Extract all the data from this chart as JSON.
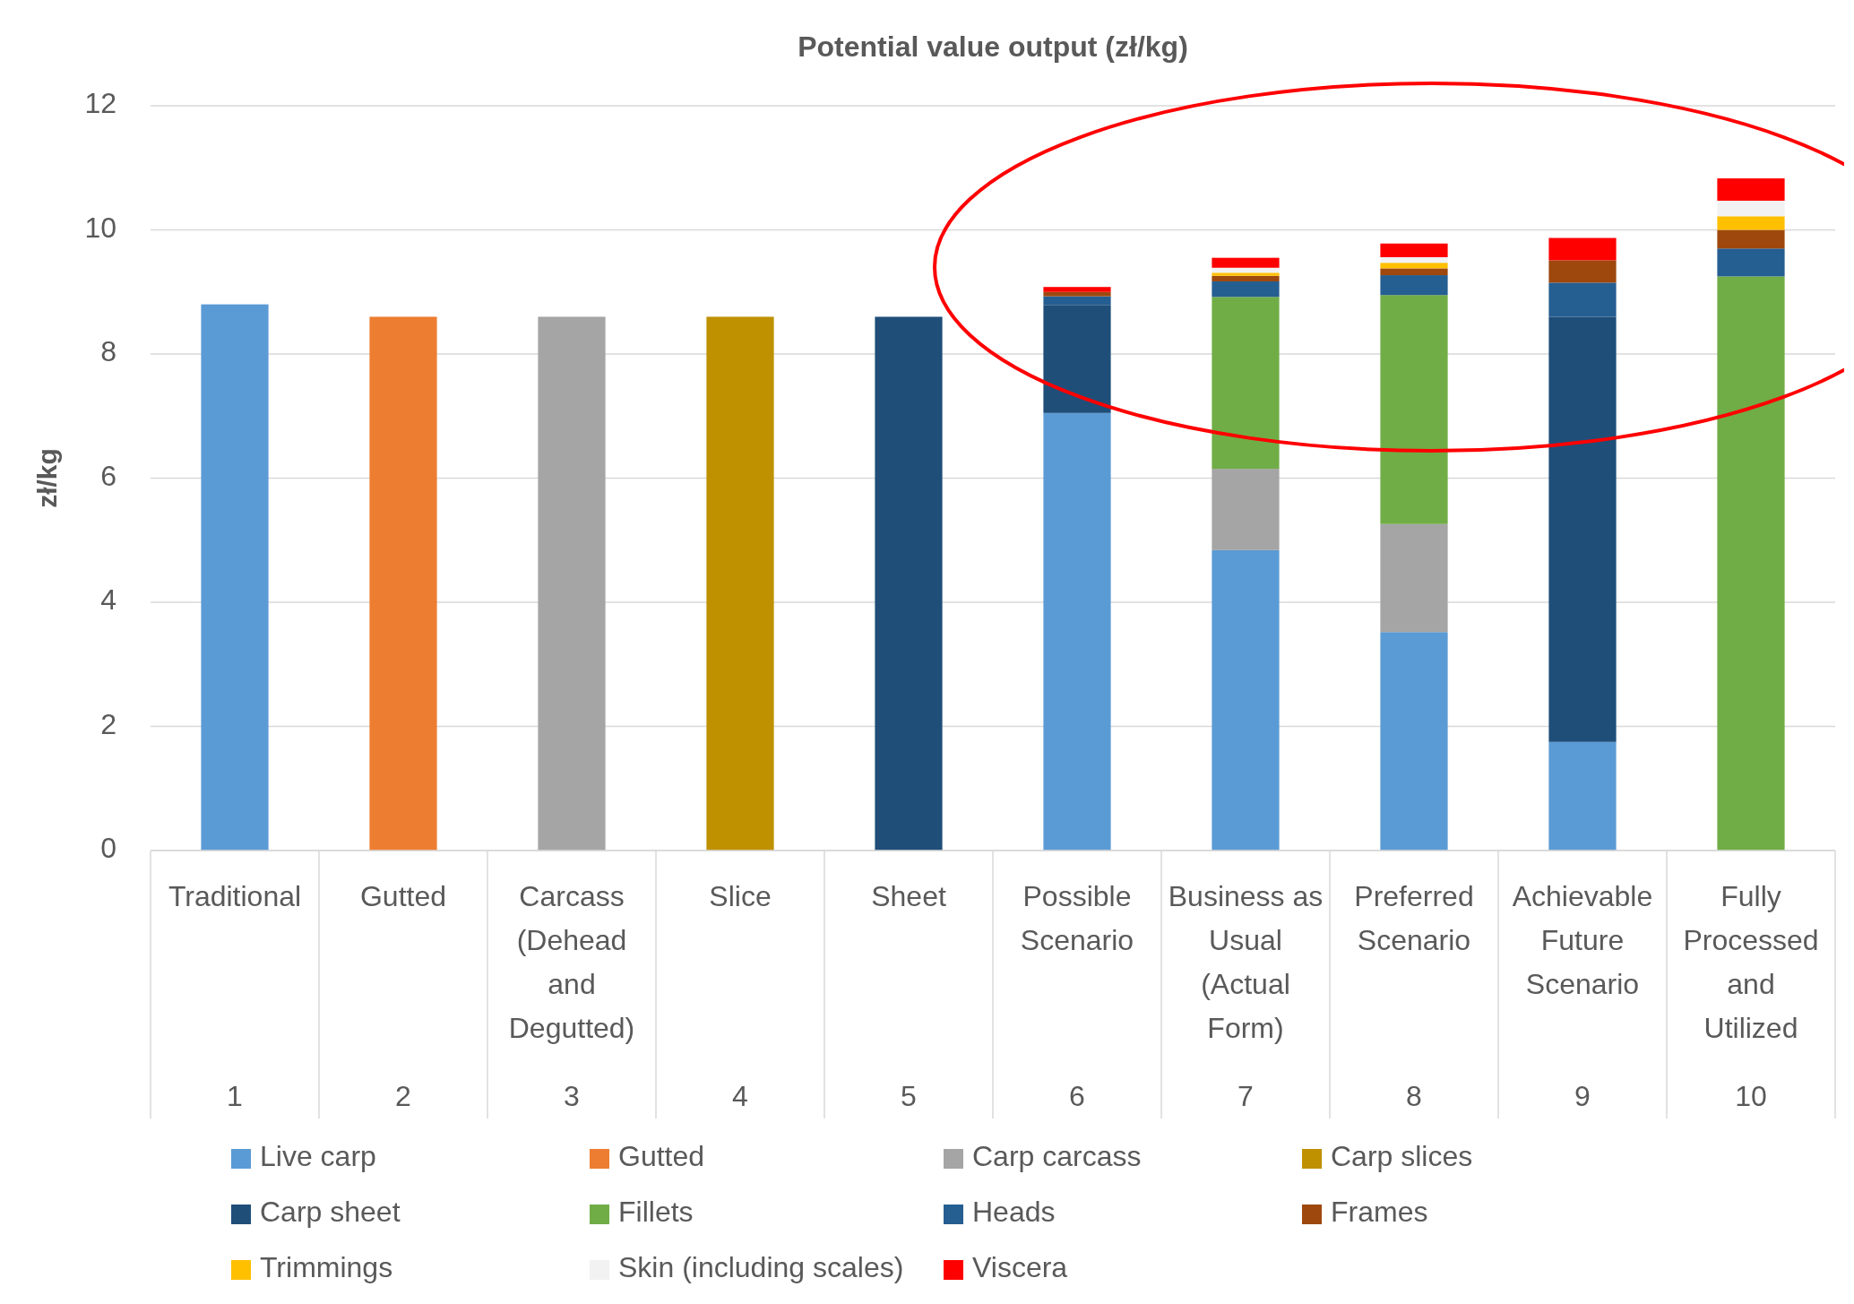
{
  "chart_data": {
    "type": "bar",
    "stacked": true,
    "title": "Potential value output (zł/kg)",
    "ylabel": "zł/kg",
    "categories": [
      "Traditional\n1",
      "Gutted\n2",
      "Carcass\n(Dehead\nand\nDegutted)\n3",
      "Slice\n4",
      "Sheet\n5",
      "Possible\nScenario\n6",
      "Business as\nUsual\n(Actual\nForm)\n7",
      "Preferred\nScenario\n8",
      "Achievable\nFuture\nScenario\n9",
      "Fully\nProcessed\nand\nUtilized\n10"
    ],
    "series": [
      {
        "name": "Live carp",
        "color": "#5b9bd5",
        "values": [
          8.8,
          null,
          null,
          null,
          null,
          7.05,
          4.84,
          3.52,
          1.75,
          null
        ]
      },
      {
        "name": "Gutted",
        "color": "#ed7d31",
        "values": [
          null,
          8.6,
          null,
          null,
          null,
          null,
          null,
          null,
          null,
          null
        ]
      },
      {
        "name": "Carp carcass",
        "color": "#a5a5a5",
        "values": [
          null,
          null,
          8.6,
          null,
          null,
          null,
          1.31,
          1.74,
          null,
          null
        ]
      },
      {
        "name": "Carp slices",
        "color": "#bf9000",
        "values": [
          null,
          null,
          null,
          8.6,
          null,
          null,
          null,
          null,
          null,
          null
        ]
      },
      {
        "name": "Carp sheet",
        "color": "#1f4e79",
        "values": [
          null,
          null,
          null,
          null,
          8.6,
          1.74,
          null,
          null,
          6.85,
          null
        ]
      },
      {
        "name": "Fillets",
        "color": "#70ad47",
        "values": [
          null,
          null,
          null,
          null,
          null,
          null,
          2.77,
          3.69,
          null,
          9.25
        ]
      },
      {
        "name": "Heads",
        "color": "#255e91",
        "values": [
          null,
          null,
          null,
          null,
          null,
          0.14,
          0.25,
          0.32,
          0.55,
          0.45
        ]
      },
      {
        "name": "Frames",
        "color": "#9e480e",
        "values": [
          null,
          null,
          null,
          null,
          null,
          0.07,
          0.09,
          0.11,
          0.36,
          0.3
        ]
      },
      {
        "name": "Trimmings",
        "color": "#ffc000",
        "values": [
          null,
          null,
          null,
          null,
          null,
          null,
          0.05,
          0.09,
          null,
          0.22
        ]
      },
      {
        "name": "Skin (including scales)",
        "color": "#f2f2f2",
        "values": [
          null,
          null,
          null,
          null,
          null,
          null,
          0.08,
          0.09,
          null,
          0.25
        ]
      },
      {
        "name": "Viscera",
        "color": "#ff0000",
        "values": [
          null,
          null,
          null,
          null,
          null,
          0.08,
          0.16,
          0.22,
          0.36,
          0.36
        ]
      }
    ],
    "ylim": [
      0,
      12
    ],
    "yticks": [
      0,
      2,
      4,
      6,
      8,
      10,
      12
    ],
    "grid": true,
    "legend": "bottom"
  }
}
